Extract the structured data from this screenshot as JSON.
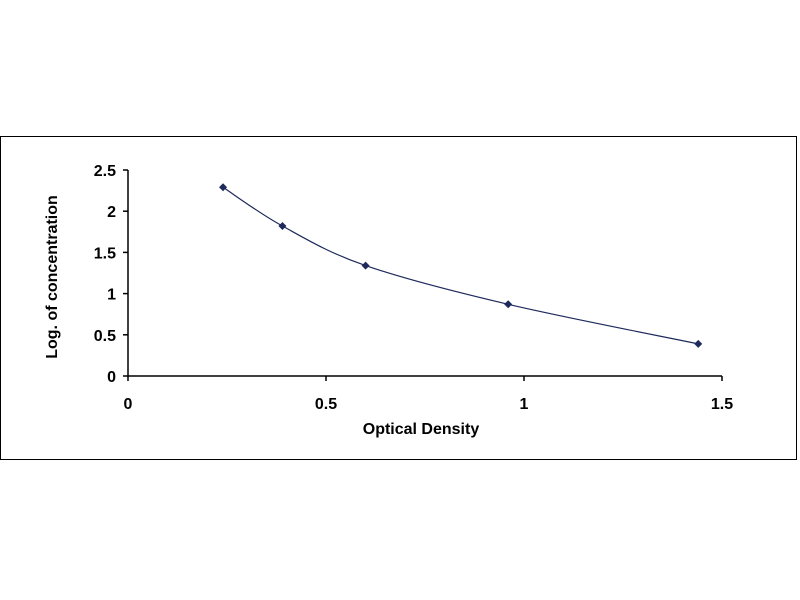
{
  "chart_data": {
    "type": "scatter",
    "title": "",
    "xlabel": "Optical Density",
    "ylabel": "Log. of concentration",
    "xlim": [
      0,
      1.5
    ],
    "ylim": [
      0,
      2.5
    ],
    "x_ticks": [
      "0",
      "0.5",
      "1",
      "1.5"
    ],
    "y_ticks": [
      "0",
      "0.5",
      "1",
      "1.5",
      "2",
      "2.5"
    ],
    "grid": false,
    "legend": "none",
    "marker": "diamond",
    "marker_color": "#1f2a5c",
    "line_color": "#1f2a5c",
    "trendline": "smooth",
    "series": [
      {
        "x": [
          0.24,
          0.39,
          0.6,
          0.96,
          1.44
        ],
        "y": [
          2.29,
          1.82,
          1.34,
          0.87,
          0.39
        ]
      }
    ]
  }
}
